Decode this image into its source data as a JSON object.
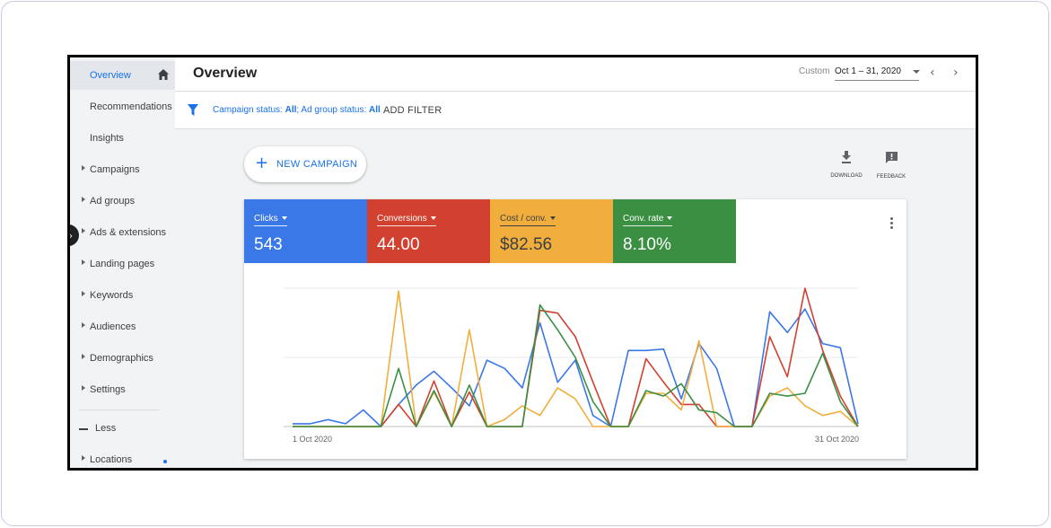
{
  "sidebar": {
    "items": [
      {
        "label": "Overview",
        "active": true,
        "caret": false
      },
      {
        "label": "Recommendations",
        "caret": false
      },
      {
        "label": "Insights",
        "caret": false
      },
      {
        "label": "Campaigns",
        "caret": true
      },
      {
        "label": "Ad groups",
        "caret": true
      },
      {
        "label": "Ads & extensions",
        "caret": true
      },
      {
        "label": "Landing pages",
        "caret": true
      },
      {
        "label": "Keywords",
        "caret": true
      },
      {
        "label": "Audiences",
        "caret": true
      },
      {
        "label": "Demographics",
        "caret": true
      },
      {
        "label": "Settings",
        "caret": true
      }
    ],
    "less_label": "Less",
    "locations_label": "Locations"
  },
  "header": {
    "title": "Overview",
    "date_custom_label": "Custom",
    "date_range": "Oct 1 – 31, 2020"
  },
  "filters": {
    "campaign_status_label": "Campaign status:",
    "campaign_status_value": "All",
    "ad_group_status_label": "; Ad group status:",
    "ad_group_status_value": "All",
    "add_filter": "ADD FILTER"
  },
  "toolbar": {
    "new_campaign": "NEW CAMPAIGN",
    "download": "DOWNLOAD",
    "feedback": "FEEDBACK"
  },
  "metrics": [
    {
      "label": "Clicks",
      "value": "543",
      "color": "#3b78e7"
    },
    {
      "label": "Conversions",
      "value": "44.00",
      "color": "#d2412f"
    },
    {
      "label": "Cost / conv.",
      "value": "$82.56",
      "color": "#f2ae3d"
    },
    {
      "label": "Conv. rate",
      "value": "8.10%",
      "color": "#3a8f43"
    }
  ],
  "chart_data": {
    "type": "line",
    "x_start_label": "1 Oct 2020",
    "x_end_label": "31 Oct 2020",
    "grid": true,
    "ylim": [
      0,
      1
    ],
    "series": [
      {
        "name": "Clicks",
        "color": "#3b78e7",
        "values": [
          0.02,
          0.02,
          0.05,
          0.02,
          0.12,
          0.0,
          0.16,
          0.3,
          0.4,
          0.28,
          0.15,
          0.48,
          0.42,
          0.28,
          0.75,
          0.32,
          0.48,
          0.08,
          0.0,
          0.55,
          0.55,
          0.56,
          0.2,
          0.6,
          0.42,
          0.0,
          0.0,
          0.83,
          0.68,
          0.85,
          0.6,
          0.57,
          0.02
        ]
      },
      {
        "name": "Conversions",
        "color": "#d2412f",
        "values": [
          0.0,
          0.0,
          0.0,
          0.0,
          0.0,
          0.0,
          0.16,
          0.0,
          0.33,
          0.0,
          0.25,
          0.0,
          0.0,
          0.0,
          0.84,
          0.82,
          0.65,
          0.32,
          0.0,
          0.0,
          0.49,
          0.32,
          0.16,
          0.16,
          0.0,
          0.0,
          0.0,
          0.65,
          0.36,
          1.0,
          0.55,
          0.22,
          0.0
        ]
      },
      {
        "name": "Cost / conv.",
        "color": "#f2ae3d",
        "values": [
          0.0,
          0.0,
          0.0,
          0.0,
          0.0,
          0.0,
          0.98,
          0.0,
          0.25,
          0.0,
          0.7,
          0.0,
          0.05,
          0.15,
          0.08,
          0.28,
          0.2,
          0.0,
          0.0,
          0.0,
          0.24,
          0.24,
          0.12,
          0.62,
          0.0,
          0.0,
          0.0,
          0.22,
          0.28,
          0.15,
          0.08,
          0.11,
          0.0
        ]
      },
      {
        "name": "Conv. rate",
        "color": "#3a8f43",
        "values": [
          0.0,
          0.0,
          0.0,
          0.0,
          0.0,
          0.0,
          0.42,
          0.0,
          0.26,
          0.0,
          0.3,
          0.0,
          0.0,
          0.0,
          0.88,
          0.7,
          0.5,
          0.18,
          0.0,
          0.0,
          0.26,
          0.22,
          0.31,
          0.12,
          0.1,
          0.0,
          0.0,
          0.24,
          0.22,
          0.24,
          0.53,
          0.18,
          0.0
        ]
      }
    ]
  }
}
